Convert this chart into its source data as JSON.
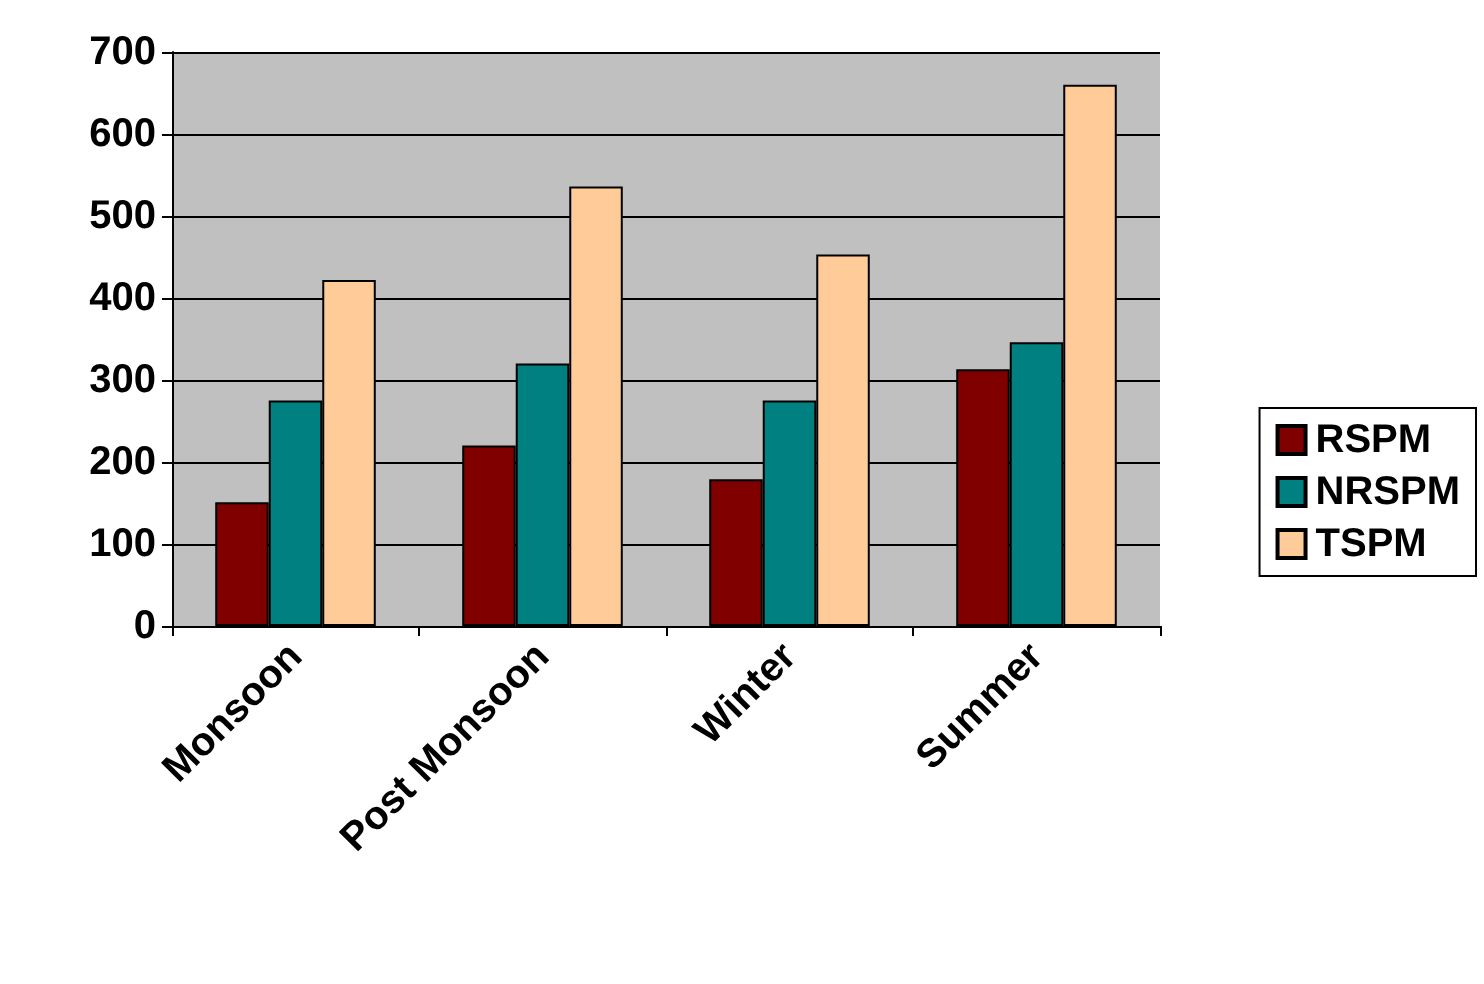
{
  "chart_data": {
    "type": "bar",
    "categories": [
      "Monsoon",
      "Post Monsoon",
      "Winter",
      "Summer"
    ],
    "series": [
      {
        "name": "RSPM",
        "color": "#800000",
        "values": [
          151,
          220,
          179,
          313
        ]
      },
      {
        "name": "NRSPM",
        "color": "#008080",
        "values": [
          275,
          320,
          275,
          346
        ]
      },
      {
        "name": "TSPM",
        "color": "#ffcc99",
        "values": [
          422,
          536,
          453,
          660
        ]
      }
    ],
    "ylim": [
      0,
      700
    ],
    "yticks": [
      0,
      100,
      200,
      300,
      400,
      500,
      600,
      700
    ],
    "grid": "y",
    "legend": "right"
  }
}
